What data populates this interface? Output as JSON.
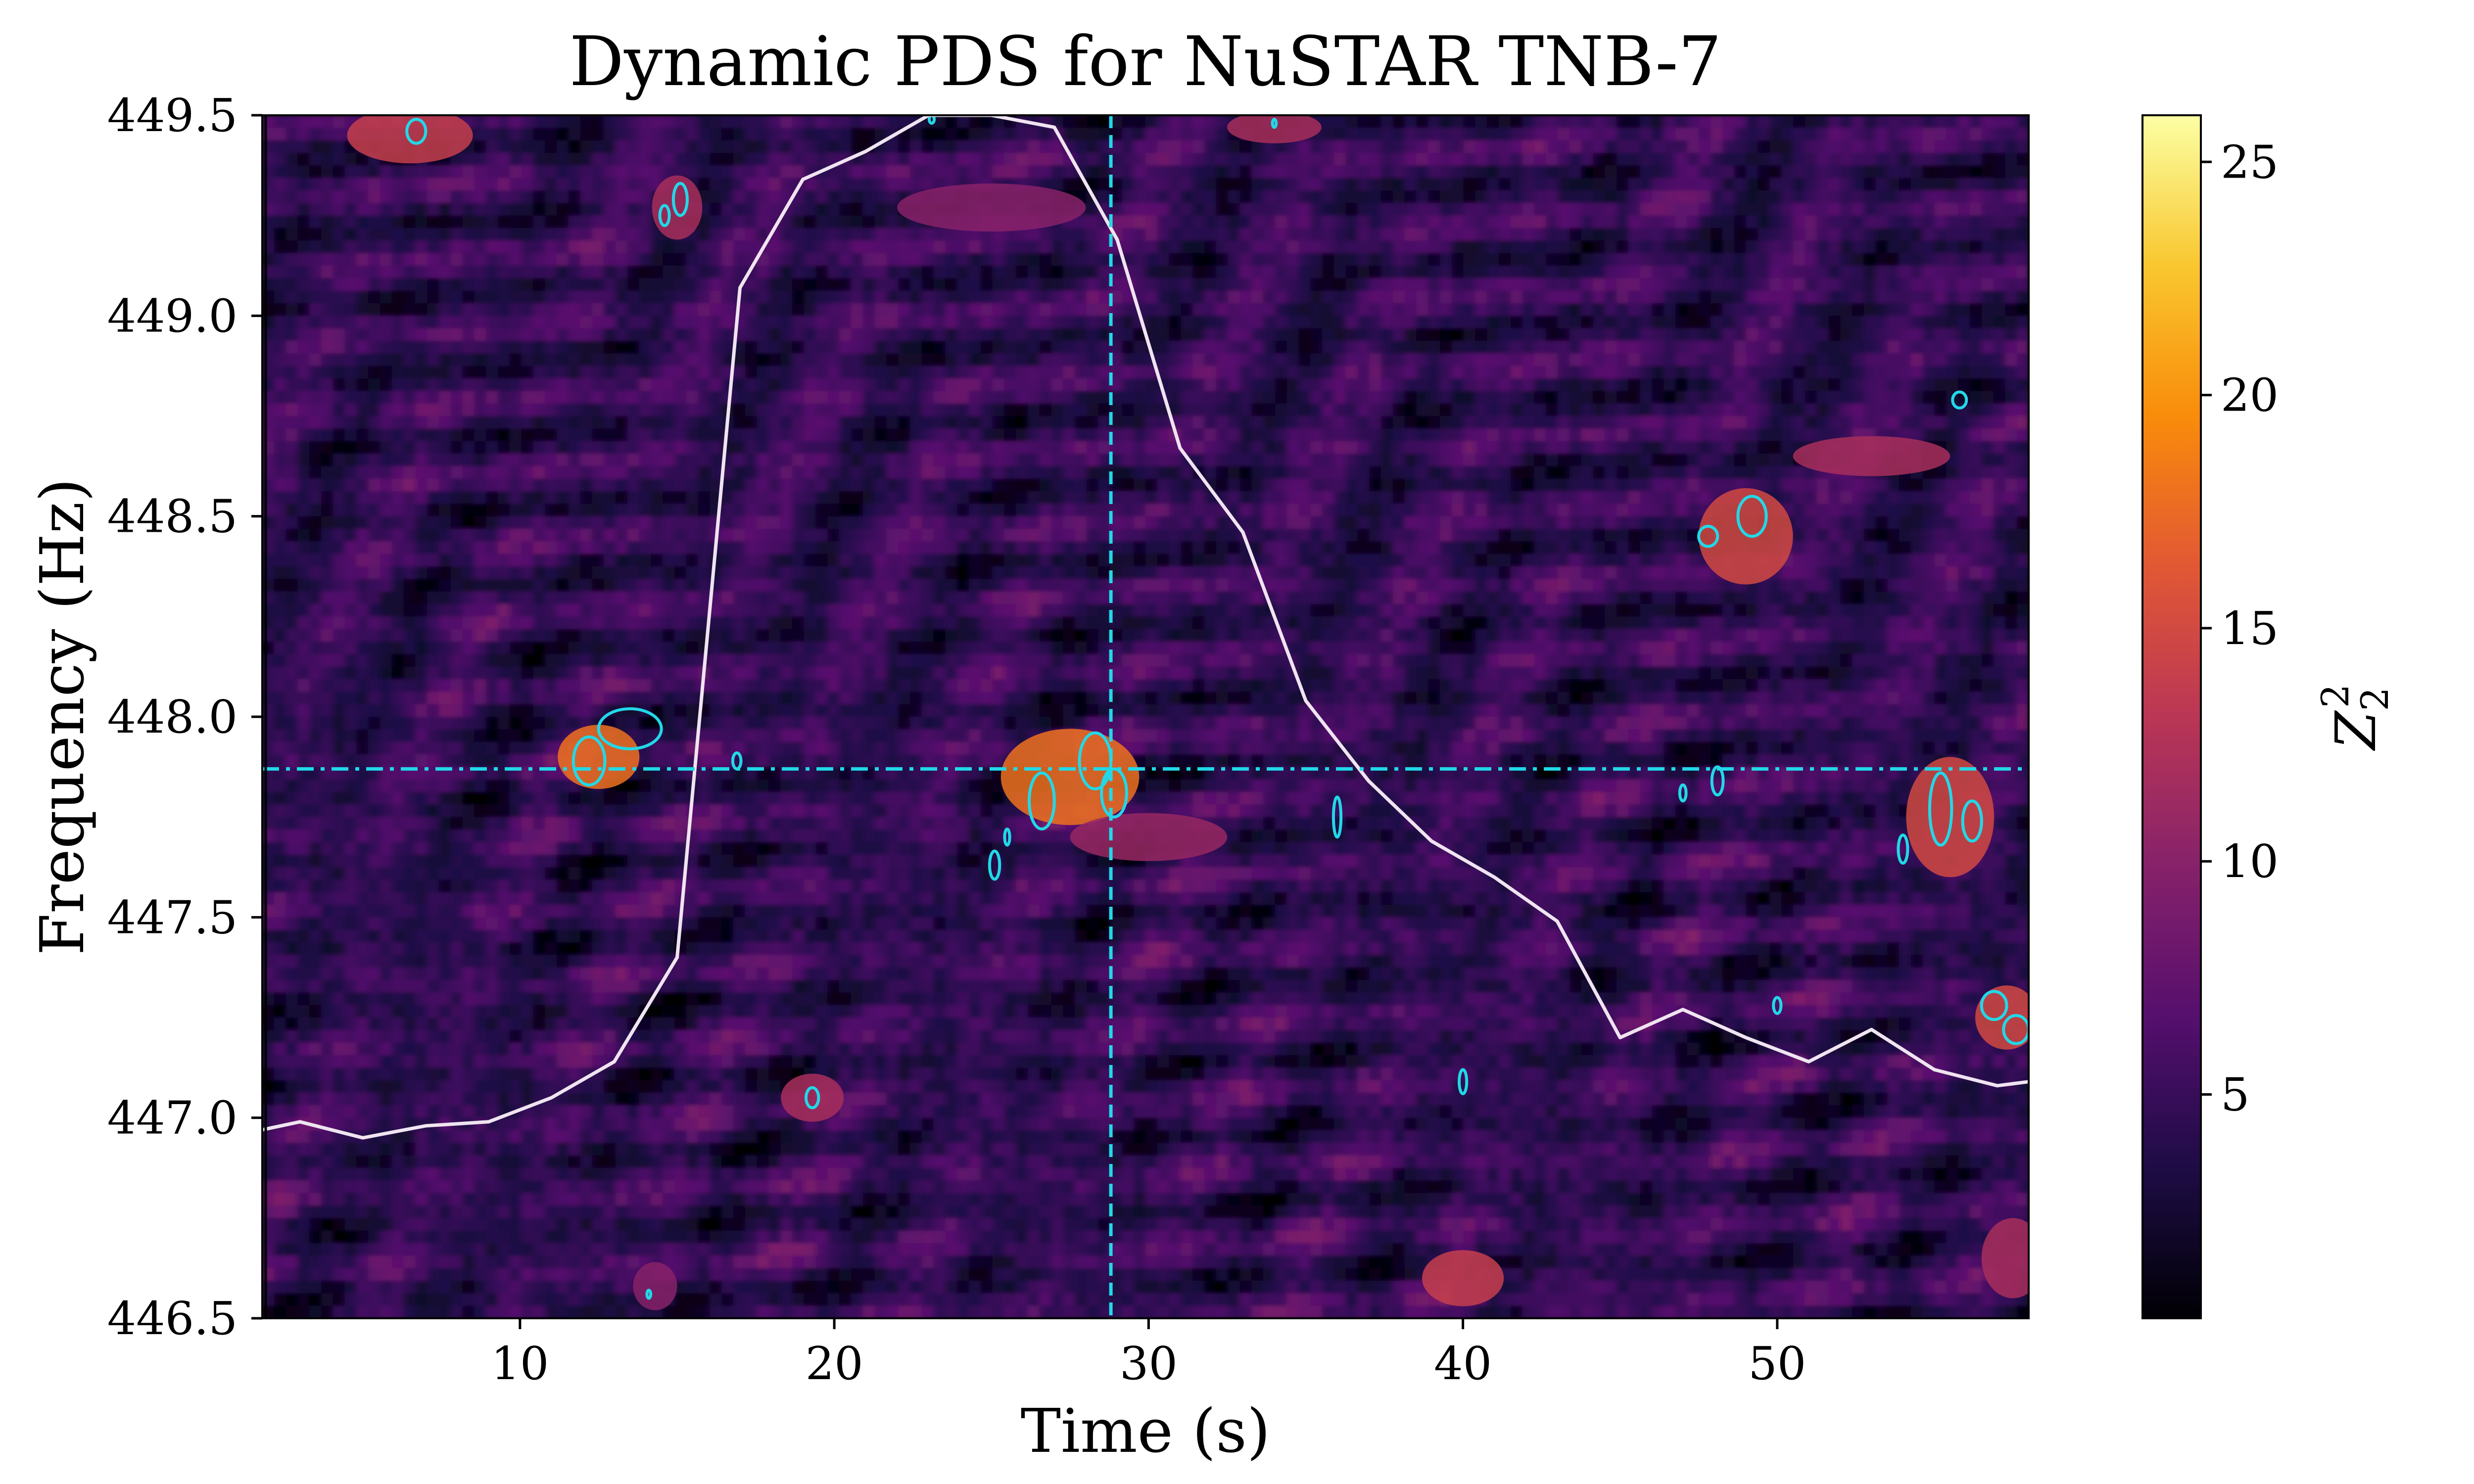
{
  "chart_data": {
    "type": "heatmap",
    "title": "Dynamic PDS for NuSTAR TNB-7",
    "xlabel": "Time (s)",
    "ylabel": "Frequency (Hz)",
    "xlim": [
      1.8,
      58
    ],
    "ylim": [
      446.5,
      449.5
    ],
    "x_ticks": [
      {
        "value": 10,
        "label": "10"
      },
      {
        "value": 20,
        "label": "20"
      },
      {
        "value": 30,
        "label": "30"
      },
      {
        "value": 40,
        "label": "40"
      },
      {
        "value": 50,
        "label": "50"
      }
    ],
    "y_ticks": [
      {
        "value": 446.5,
        "label": "446.5"
      },
      {
        "value": 447.0,
        "label": "447.0"
      },
      {
        "value": 447.5,
        "label": "447.5"
      },
      {
        "value": 448.0,
        "label": "448.0"
      },
      {
        "value": 448.5,
        "label": "448.5"
      },
      {
        "value": 449.0,
        "label": "449.0"
      },
      {
        "value": 449.5,
        "label": "449.5"
      }
    ],
    "colormap": "inferno",
    "colorbar": {
      "label": "Z",
      "label_sub": "2",
      "label_sup": "2",
      "range": [
        0.2,
        26
      ],
      "ticks": [
        {
          "value": 5,
          "label": "5"
        },
        {
          "value": 10,
          "label": "10"
        },
        {
          "value": 15,
          "label": "15"
        },
        {
          "value": 20,
          "label": "20"
        },
        {
          "value": 25,
          "label": "25"
        }
      ]
    },
    "reference_lines": {
      "vertical_time": 28.8,
      "horizontal_frequency": 447.87,
      "color": "#22d8e8",
      "style": "dashed"
    },
    "light_curve": {
      "color": "#efe4f0",
      "note": "plotted in frequency-axis units",
      "x": [
        1.8,
        3,
        5,
        7,
        9,
        11,
        13,
        15,
        17,
        19,
        21,
        23,
        25,
        27,
        29,
        31,
        33,
        35,
        37,
        39,
        41,
        43,
        45,
        47,
        49,
        51,
        53,
        55,
        57,
        58
      ],
      "y": [
        446.97,
        446.99,
        446.95,
        446.98,
        446.99,
        447.05,
        447.14,
        447.4,
        449.07,
        449.34,
        449.41,
        449.5,
        449.5,
        449.47,
        449.19,
        448.67,
        448.46,
        448.04,
        447.84,
        447.69,
        447.6,
        447.49,
        447.2,
        447.27,
        447.2,
        447.14,
        447.22,
        447.12,
        447.08,
        447.09
      ]
    },
    "contours": {
      "color": "#22d8e8",
      "blobs": [
        {
          "t": 12.2,
          "f": 447.89,
          "dt": 0.5,
          "df": 0.06
        },
        {
          "t": 13.5,
          "f": 447.97,
          "dt": 1.0,
          "df": 0.05
        },
        {
          "t": 15.1,
          "f": 449.29,
          "dt": 0.22,
          "df": 0.04
        },
        {
          "t": 14.6,
          "f": 449.25,
          "dt": 0.15,
          "df": 0.025
        },
        {
          "t": 6.7,
          "f": 449.46,
          "dt": 0.3,
          "df": 0.03
        },
        {
          "t": 16.9,
          "f": 447.89,
          "dt": 0.13,
          "df": 0.02
        },
        {
          "t": 19.3,
          "f": 447.05,
          "dt": 0.2,
          "df": 0.025
        },
        {
          "t": 25.1,
          "f": 447.63,
          "dt": 0.16,
          "df": 0.035
        },
        {
          "t": 25.5,
          "f": 447.7,
          "dt": 0.08,
          "df": 0.02
        },
        {
          "t": 26.6,
          "f": 447.79,
          "dt": 0.4,
          "df": 0.07
        },
        {
          "t": 28.3,
          "f": 447.89,
          "dt": 0.5,
          "df": 0.07
        },
        {
          "t": 28.9,
          "f": 447.81,
          "dt": 0.4,
          "df": 0.06
        },
        {
          "t": 36.0,
          "f": 447.75,
          "dt": 0.12,
          "df": 0.05
        },
        {
          "t": 40.0,
          "f": 447.09,
          "dt": 0.12,
          "df": 0.03
        },
        {
          "t": 47.0,
          "f": 447.81,
          "dt": 0.1,
          "df": 0.02
        },
        {
          "t": 48.1,
          "f": 447.84,
          "dt": 0.18,
          "df": 0.035
        },
        {
          "t": 47.8,
          "f": 448.45,
          "dt": 0.3,
          "df": 0.025
        },
        {
          "t": 49.2,
          "f": 448.5,
          "dt": 0.45,
          "df": 0.05
        },
        {
          "t": 50.0,
          "f": 447.28,
          "dt": 0.12,
          "df": 0.02
        },
        {
          "t": 54.0,
          "f": 447.67,
          "dt": 0.15,
          "df": 0.035
        },
        {
          "t": 55.2,
          "f": 447.77,
          "dt": 0.35,
          "df": 0.09
        },
        {
          "t": 56.2,
          "f": 447.74,
          "dt": 0.3,
          "df": 0.05
        },
        {
          "t": 55.8,
          "f": 448.79,
          "dt": 0.22,
          "df": 0.02
        },
        {
          "t": 56.9,
          "f": 447.28,
          "dt": 0.4,
          "df": 0.035
        },
        {
          "t": 57.6,
          "f": 447.22,
          "dt": 0.4,
          "df": 0.035
        },
        {
          "t": 14.1,
          "f": 446.56,
          "dt": 0.06,
          "df": 0.01
        },
        {
          "t": 34.0,
          "f": 449.48,
          "dt": 0.06,
          "df": 0.01
        },
        {
          "t": 23.1,
          "f": 449.49,
          "dt": 0.08,
          "df": 0.01
        }
      ]
    },
    "hotspots": [
      {
        "t": 12.5,
        "f": 447.9,
        "dt": 1.3,
        "df": 0.08,
        "z": 18
      },
      {
        "t": 27.5,
        "f": 447.85,
        "dt": 2.2,
        "df": 0.12,
        "z": 18
      },
      {
        "t": 49.0,
        "f": 448.45,
        "dt": 1.5,
        "df": 0.12,
        "z": 15
      },
      {
        "t": 55.5,
        "f": 447.75,
        "dt": 1.4,
        "df": 0.15,
        "z": 15
      },
      {
        "t": 6.5,
        "f": 449.45,
        "dt": 2.0,
        "df": 0.07,
        "z": 14
      },
      {
        "t": 40.0,
        "f": 446.6,
        "dt": 1.3,
        "df": 0.07,
        "z": 14
      },
      {
        "t": 57.3,
        "f": 447.25,
        "dt": 1.0,
        "df": 0.08,
        "z": 15
      },
      {
        "t": 15.0,
        "f": 449.27,
        "dt": 0.8,
        "df": 0.08,
        "z": 12
      },
      {
        "t": 19.3,
        "f": 447.05,
        "dt": 1.0,
        "df": 0.06,
        "z": 12
      },
      {
        "t": 53.0,
        "f": 448.65,
        "dt": 2.5,
        "df": 0.05,
        "z": 12
      },
      {
        "t": 34.0,
        "f": 449.47,
        "dt": 1.5,
        "df": 0.04,
        "z": 12
      },
      {
        "t": 57.5,
        "f": 446.65,
        "dt": 1.0,
        "df": 0.1,
        "z": 12
      },
      {
        "t": 30.0,
        "f": 447.7,
        "dt": 2.5,
        "df": 0.06,
        "z": 11
      },
      {
        "t": 14.3,
        "f": 446.58,
        "dt": 0.7,
        "df": 0.06,
        "z": 10
      },
      {
        "t": 25.0,
        "f": 449.27,
        "dt": 3.0,
        "df": 0.06,
        "z": 10
      }
    ]
  }
}
